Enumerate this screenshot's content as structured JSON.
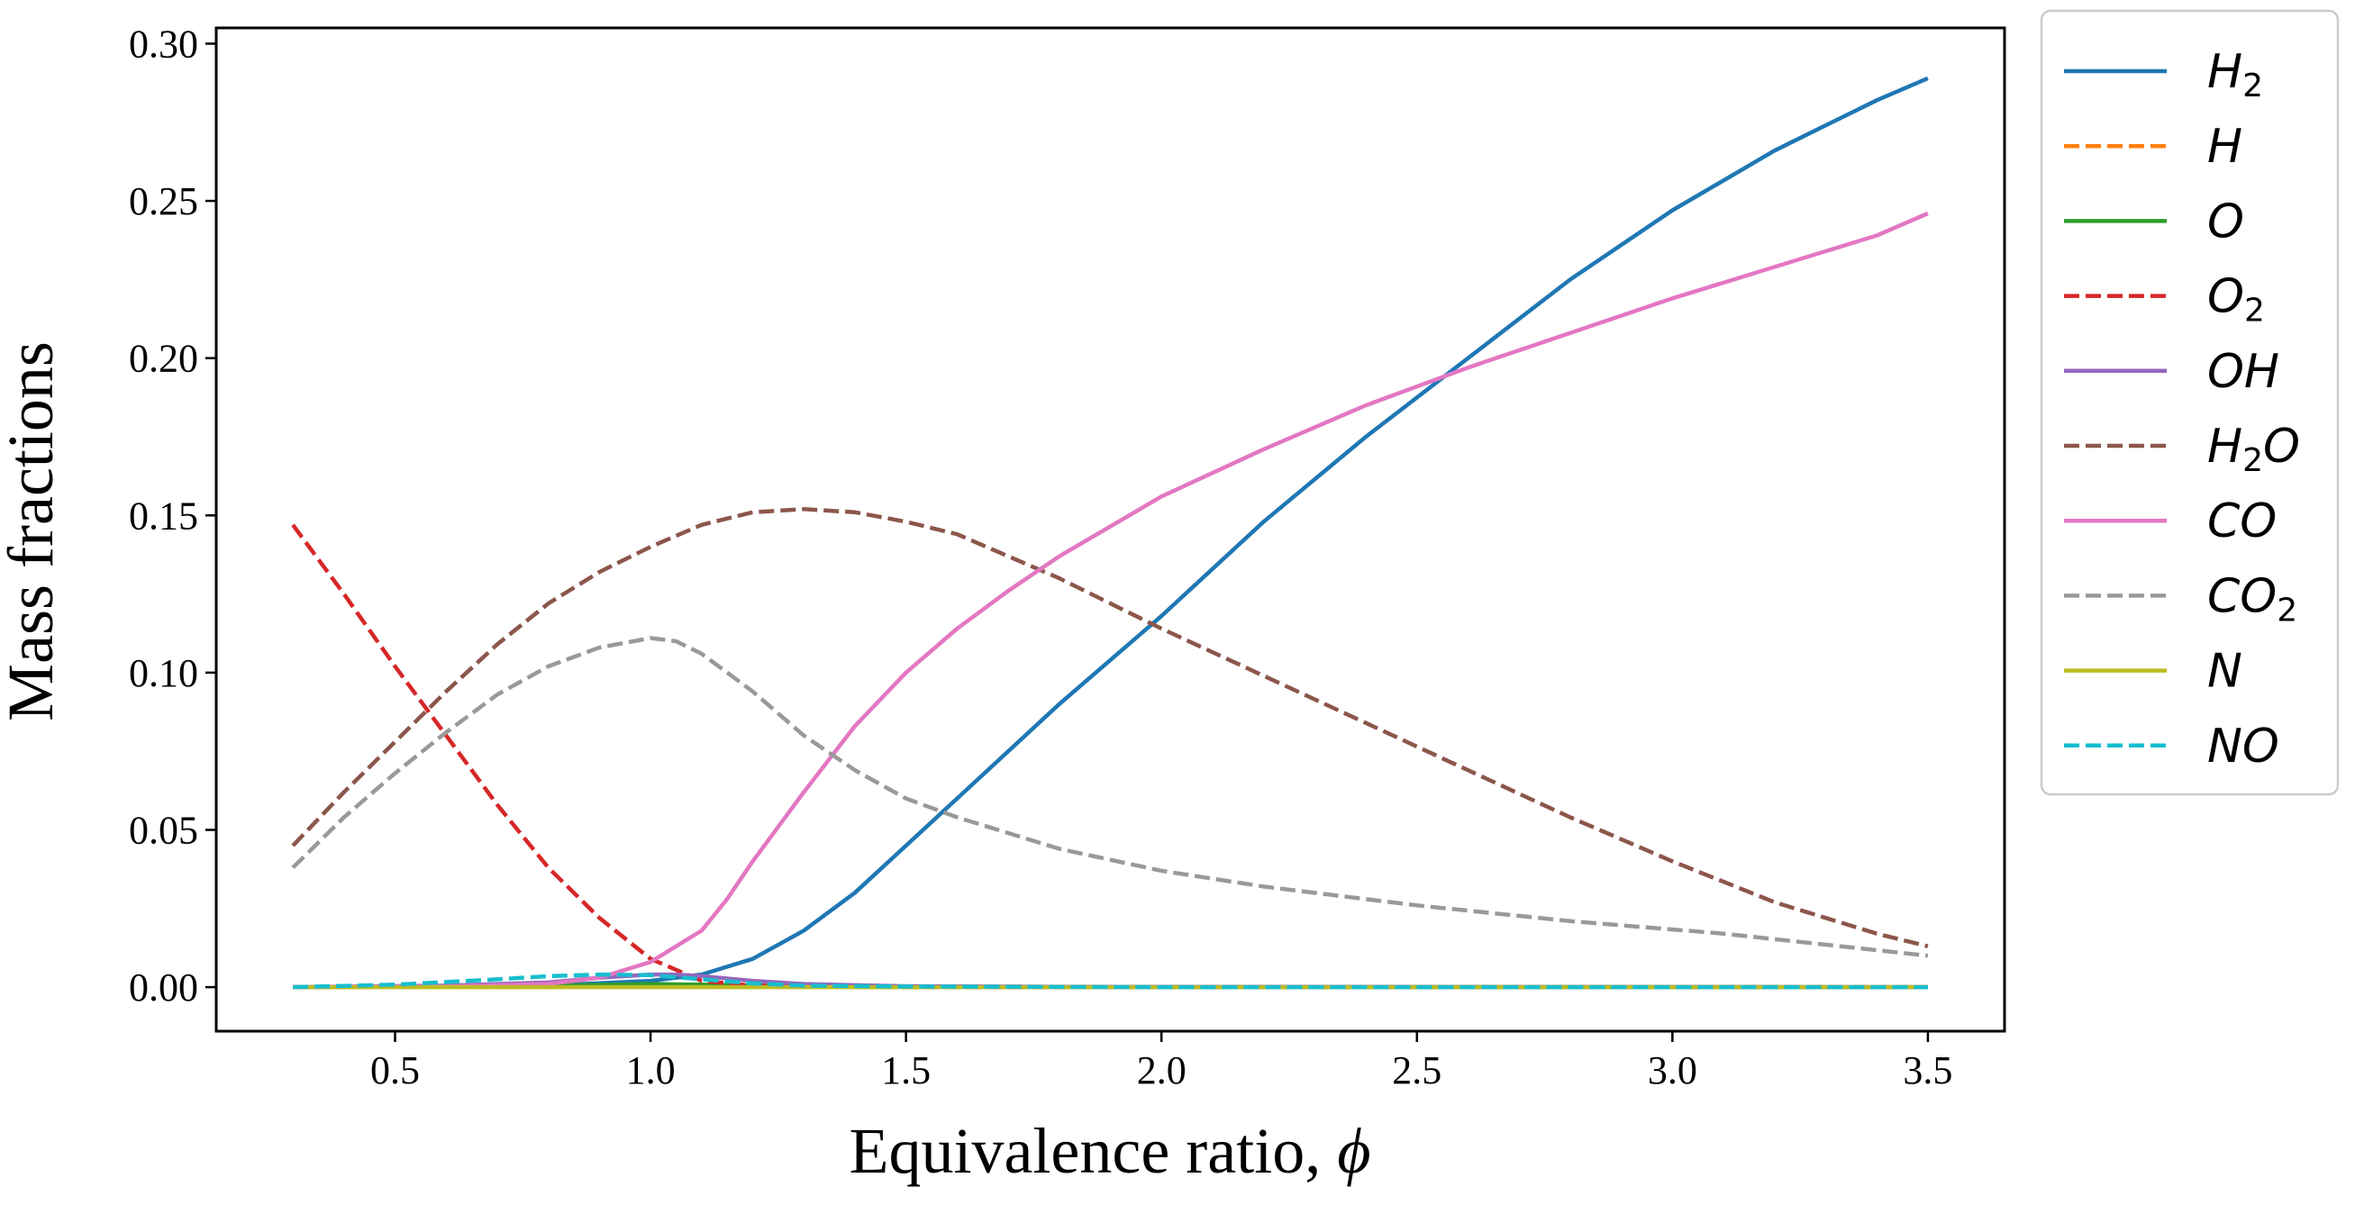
{
  "chart_data": {
    "type": "line",
    "xlabel": "Equivalence ratio, ",
    "xlabel_symbol": "ϕ",
    "ylabel": "Mass fractions",
    "xlim": [
      0.15,
      3.65
    ],
    "ylim": [
      -0.014,
      0.305
    ],
    "xticks": [
      0.5,
      1.0,
      1.5,
      2.0,
      2.5,
      3.0,
      3.5
    ],
    "xtick_labels": [
      "0.5",
      "1.0",
      "1.5",
      "2.0",
      "2.5",
      "3.0",
      "3.5"
    ],
    "yticks": [
      0.0,
      0.05,
      0.1,
      0.15,
      0.2,
      0.25,
      0.3
    ],
    "ytick_labels": [
      "0.00",
      "0.05",
      "0.10",
      "0.15",
      "0.20",
      "0.25",
      "0.30"
    ],
    "legend_position": "outside-right",
    "series": [
      {
        "name": "H2",
        "label": "H",
        "sub": "2",
        "tail": "",
        "color": "#1f77b4",
        "dash": "solid",
        "x": [
          0.3,
          0.8,
          1.0,
          1.1,
          1.2,
          1.3,
          1.4,
          1.5,
          1.6,
          1.8,
          2.0,
          2.2,
          2.4,
          2.6,
          2.8,
          3.0,
          3.2,
          3.4,
          3.5
        ],
        "y": [
          0.0,
          0.0005,
          0.002,
          0.004,
          0.009,
          0.018,
          0.03,
          0.045,
          0.06,
          0.09,
          0.118,
          0.148,
          0.175,
          0.2,
          0.225,
          0.247,
          0.266,
          0.282,
          0.289
        ]
      },
      {
        "name": "H",
        "label": "H",
        "sub": "",
        "tail": "",
        "color": "#ff7f0e",
        "dash": "dashed",
        "x": [
          0.3,
          0.9,
          1.0,
          1.1,
          1.3,
          1.6,
          2.0,
          3.5
        ],
        "y": [
          0.0,
          0.0002,
          0.0004,
          0.0005,
          0.0004,
          0.0002,
          0.0001,
          0.0
        ]
      },
      {
        "name": "O",
        "label": "O",
        "sub": "",
        "tail": "",
        "color": "#2ca02c",
        "dash": "solid",
        "x": [
          0.3,
          0.8,
          1.0,
          1.1,
          1.3,
          1.6,
          3.5
        ],
        "y": [
          0.0,
          0.0005,
          0.001,
          0.0008,
          0.0003,
          0.0001,
          0.0
        ]
      },
      {
        "name": "O2",
        "label": "O",
        "sub": "2",
        "tail": "",
        "color": "#d62728",
        "dash": "dashed",
        "x": [
          0.3,
          0.4,
          0.5,
          0.6,
          0.7,
          0.8,
          0.9,
          1.0,
          1.1,
          1.2,
          1.3,
          1.5,
          2.0,
          3.5
        ],
        "y": [
          0.147,
          0.125,
          0.102,
          0.08,
          0.058,
          0.038,
          0.022,
          0.009,
          0.002,
          0.0005,
          0.0002,
          0.0,
          0.0,
          0.0
        ]
      },
      {
        "name": "OH",
        "label": "OH",
        "sub": "",
        "tail": "",
        "color": "#9467bd",
        "dash": "solid",
        "x": [
          0.3,
          0.6,
          0.8,
          0.9,
          1.0,
          1.05,
          1.1,
          1.2,
          1.3,
          1.5,
          1.8,
          3.5
        ],
        "y": [
          0.0,
          0.0005,
          0.0015,
          0.003,
          0.004,
          0.004,
          0.0035,
          0.002,
          0.001,
          0.0003,
          0.0001,
          0.0
        ]
      },
      {
        "name": "H2O",
        "label": "H",
        "sub": "2",
        "tail": "O",
        "color": "#8c564b",
        "dash": "dashed",
        "x": [
          0.3,
          0.4,
          0.5,
          0.6,
          0.7,
          0.8,
          0.9,
          1.0,
          1.1,
          1.2,
          1.3,
          1.4,
          1.5,
          1.6,
          1.8,
          2.0,
          2.2,
          2.4,
          2.6,
          2.8,
          3.0,
          3.2,
          3.4,
          3.5
        ],
        "y": [
          0.045,
          0.062,
          0.078,
          0.094,
          0.109,
          0.122,
          0.132,
          0.14,
          0.147,
          0.151,
          0.152,
          0.151,
          0.148,
          0.144,
          0.13,
          0.114,
          0.099,
          0.084,
          0.069,
          0.054,
          0.04,
          0.027,
          0.017,
          0.013
        ]
      },
      {
        "name": "CO",
        "label": "CO",
        "sub": "",
        "tail": "",
        "color": "#e377c2",
        "dash": "solid",
        "x": [
          0.3,
          0.6,
          0.8,
          0.9,
          1.0,
          1.1,
          1.15,
          1.2,
          1.3,
          1.4,
          1.5,
          1.6,
          1.7,
          1.8,
          2.0,
          2.2,
          2.4,
          2.6,
          2.8,
          3.0,
          3.2,
          3.4,
          3.5
        ],
        "y": [
          0.0,
          0.0002,
          0.001,
          0.003,
          0.008,
          0.018,
          0.028,
          0.04,
          0.062,
          0.083,
          0.1,
          0.114,
          0.126,
          0.137,
          0.156,
          0.171,
          0.185,
          0.197,
          0.208,
          0.219,
          0.229,
          0.239,
          0.246
        ]
      },
      {
        "name": "CO2",
        "label": "CO",
        "sub": "2",
        "tail": "",
        "color": "#999999",
        "dash": "dashed",
        "x": [
          0.3,
          0.4,
          0.5,
          0.6,
          0.7,
          0.8,
          0.9,
          1.0,
          1.05,
          1.1,
          1.2,
          1.3,
          1.4,
          1.5,
          1.6,
          1.8,
          2.0,
          2.2,
          2.5,
          2.8,
          3.1,
          3.5
        ],
        "y": [
          0.038,
          0.054,
          0.068,
          0.081,
          0.093,
          0.102,
          0.108,
          0.111,
          0.11,
          0.106,
          0.094,
          0.08,
          0.069,
          0.06,
          0.054,
          0.044,
          0.037,
          0.032,
          0.026,
          0.021,
          0.017,
          0.01
        ]
      },
      {
        "name": "N",
        "label": "N",
        "sub": "",
        "tail": "",
        "color": "#bcbd22",
        "dash": "solid",
        "x": [
          0.3,
          1.0,
          3.5
        ],
        "y": [
          0.0,
          0.0,
          0.0
        ]
      },
      {
        "name": "NO",
        "label": "NO",
        "sub": "",
        "tail": "",
        "color": "#17becf",
        "dash": "dashed",
        "x": [
          0.3,
          0.5,
          0.7,
          0.8,
          0.9,
          1.0,
          1.1,
          1.2,
          1.3,
          1.5,
          2.0,
          3.5
        ],
        "y": [
          0.0,
          0.0008,
          0.0025,
          0.0035,
          0.004,
          0.0038,
          0.0025,
          0.0012,
          0.0005,
          0.0002,
          0.0,
          0.0
        ]
      }
    ]
  }
}
